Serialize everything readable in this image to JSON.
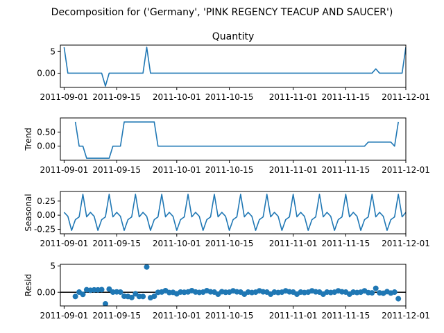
{
  "chart_data": {
    "suptitle": "Decomposition for ('Germany', 'PINK REGENCY TEACUP AND SAUCER')",
    "start_date": "2011-09-01",
    "xlim": [
      "2011-08-31",
      "2011-12-01"
    ],
    "xticks": [
      "2011-09-01",
      "2011-09-15",
      "2011-10-01",
      "2011-10-15",
      "2011-11-01",
      "2011-11-15",
      "2011-12-01"
    ],
    "panels": [
      {
        "name": "observed",
        "type": "line",
        "title": "Quantity",
        "ylabel": "",
        "ylim": [
          -3.3,
          6.5
        ],
        "yticks": [
          0,
          5
        ],
        "values": [
          6,
          0,
          0,
          0,
          0,
          0,
          0,
          0,
          0,
          0,
          0,
          -3,
          0,
          0,
          0,
          0,
          0,
          0,
          0,
          0,
          0,
          0,
          6,
          0,
          0,
          0,
          0,
          0,
          0,
          0,
          0,
          0,
          0,
          0,
          0,
          0,
          0,
          0,
          0,
          0,
          0,
          0,
          0,
          0,
          0,
          0,
          0,
          0,
          0,
          0,
          0,
          0,
          0,
          0,
          0,
          0,
          0,
          0,
          0,
          0,
          0,
          0,
          0,
          0,
          0,
          0,
          0,
          0,
          0,
          0,
          0,
          0,
          0,
          0,
          0,
          0,
          0,
          0,
          0,
          0,
          0,
          0,
          0,
          1,
          0,
          0,
          0,
          0,
          0,
          0,
          0,
          6
        ]
      },
      {
        "name": "trend",
        "type": "line",
        "title": "",
        "ylabel": "Trend",
        "ylim": [
          -0.5,
          1.0
        ],
        "yticks": [
          0.0,
          0.5
        ],
        "values": [
          null,
          null,
          null,
          0.857,
          0,
          0,
          -0.429,
          -0.429,
          -0.429,
          -0.429,
          -0.429,
          -0.429,
          -0.429,
          0,
          0,
          0,
          0.857,
          0.857,
          0.857,
          0.857,
          0.857,
          0.857,
          0.857,
          0.857,
          0.857,
          0,
          0,
          0,
          0,
          0,
          0,
          0,
          0,
          0,
          0,
          0,
          0,
          0,
          0,
          0,
          0,
          0,
          0,
          0,
          0,
          0,
          0,
          0,
          0,
          0,
          0,
          0,
          0,
          0,
          0,
          0,
          0,
          0,
          0,
          0,
          0,
          0,
          0,
          0,
          0,
          0,
          0,
          0,
          0,
          0,
          0,
          0,
          0,
          0,
          0,
          0,
          0,
          0,
          0,
          0,
          0,
          0.143,
          0.143,
          0.143,
          0.143,
          0.143,
          0.143,
          0.143,
          0,
          0.857,
          null,
          null,
          null
        ]
      },
      {
        "name": "seasonal",
        "type": "line",
        "title": "",
        "ylabel": "Seasonal",
        "ylim": [
          -0.33,
          0.42
        ],
        "yticks": [
          -0.25,
          0.0,
          0.25
        ],
        "values": [
          0.05,
          -0.02,
          -0.27,
          -0.08,
          -0.03,
          0.37,
          -0.03,
          0.05,
          -0.02,
          -0.27,
          -0.08,
          -0.03,
          0.37,
          -0.03,
          0.05,
          -0.02,
          -0.27,
          -0.08,
          -0.03,
          0.37,
          -0.03,
          0.05,
          -0.02,
          -0.27,
          -0.08,
          -0.03,
          0.37,
          -0.03,
          0.05,
          -0.02,
          -0.27,
          -0.08,
          -0.03,
          0.37,
          -0.03,
          0.05,
          -0.02,
          -0.27,
          -0.08,
          -0.03,
          0.37,
          -0.03,
          0.05,
          -0.02,
          -0.27,
          -0.08,
          -0.03,
          0.37,
          -0.03,
          0.05,
          -0.02,
          -0.27,
          -0.08,
          -0.03,
          0.37,
          -0.03,
          0.05,
          -0.02,
          -0.27,
          -0.08,
          -0.03,
          0.37,
          -0.03,
          0.05,
          -0.02,
          -0.27,
          -0.08,
          -0.03,
          0.37,
          -0.03,
          0.05,
          -0.02,
          -0.27,
          -0.08,
          -0.03,
          0.37,
          -0.03,
          0.05,
          -0.02,
          -0.27,
          -0.08,
          -0.03,
          0.37,
          -0.03,
          0.05,
          -0.02,
          -0.27,
          -0.08,
          -0.03,
          0.37,
          -0.03,
          0.05
        ]
      },
      {
        "name": "resid",
        "type": "scatter",
        "title": "",
        "ylabel": "Resid",
        "ylim": [
          -2.6,
          5.3
        ],
        "yticks": [
          0,
          5
        ],
        "zero_line": true,
        "values": [
          null,
          null,
          null,
          -0.8,
          0.03,
          -0.4,
          0.47,
          0.38,
          0.45,
          0.45,
          0.5,
          -2.2,
          0.6,
          0.03,
          0.07,
          0.03,
          -0.76,
          -0.81,
          -1.0,
          -0.3,
          -0.8,
          -0.8,
          4.8,
          -1.04,
          -0.77,
          -0.02,
          0.05,
          0.3,
          -0.05,
          -0.02,
          -0.3,
          0.04,
          0.0,
          0.06,
          0.3,
          0.05,
          -0.03,
          0.03,
          0.3,
          0.08,
          0.03,
          -0.37,
          0.1,
          0.0,
          0.02,
          0.27,
          0.08,
          0.03,
          -0.37,
          0.03,
          -0.05,
          0.02,
          0.27,
          0.08,
          0.03,
          -0.37,
          0.03,
          -0.05,
          0.02,
          0.27,
          0.08,
          0.03,
          -0.37,
          0.03,
          -0.05,
          0.02,
          0.27,
          0.08,
          0.03,
          -0.37,
          0.03,
          -0.05,
          0.02,
          0.27,
          0.08,
          0.03,
          -0.37,
          0.03,
          -0.05,
          0.02,
          0.27,
          -0.06,
          -0.11,
          0.74,
          -0.11,
          -0.19,
          0.11,
          -0.15,
          0.03,
          -1.23,
          null,
          null,
          null
        ]
      }
    ]
  }
}
